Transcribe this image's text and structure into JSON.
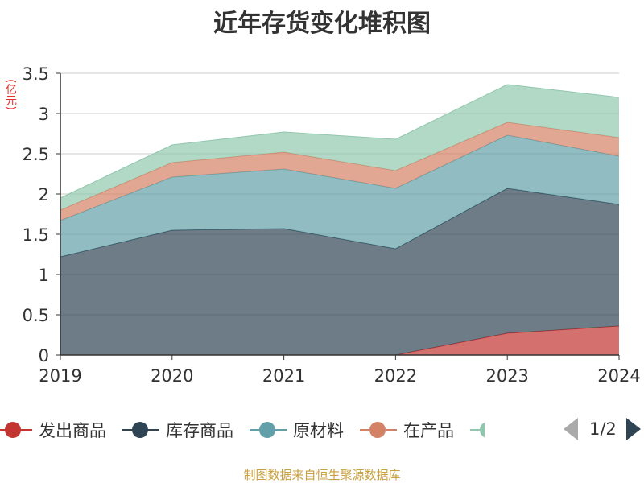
{
  "chart_data": {
    "type": "area",
    "stacked": true,
    "title": "近年存货变化堆积图",
    "y_unit": "(亿元)",
    "categories": [
      "2019",
      "2020",
      "2021",
      "2022",
      "2023",
      "2024"
    ],
    "ylim": [
      0,
      3.5
    ],
    "yticks": [
      "0",
      "0.5",
      "1",
      "1.5",
      "2",
      "2.5",
      "3",
      "3.5"
    ],
    "grid": true,
    "legend_position": "bottom",
    "series": [
      {
        "name": "发出商品",
        "color": "#c23531",
        "values": [
          0,
          0,
          0,
          0,
          0.27,
          0.36
        ]
      },
      {
        "name": "库存商品",
        "color": "#2f4554",
        "values": [
          1.22,
          1.55,
          1.57,
          1.32,
          1.8,
          1.51
        ]
      },
      {
        "name": "原材料",
        "color": "#61a0a8",
        "values": [
          0.45,
          0.66,
          0.74,
          0.75,
          0.66,
          0.6
        ]
      },
      {
        "name": "在产品",
        "color": "#d48265",
        "values": [
          0.13,
          0.18,
          0.21,
          0.22,
          0.16,
          0.23
        ]
      },
      {
        "name": "",
        "color": "#91c7ae",
        "values": [
          0.15,
          0.22,
          0.25,
          0.39,
          0.47,
          0.5
        ]
      }
    ]
  },
  "legend": {
    "items": [
      "发出商品",
      "库存商品",
      "原材料",
      "在产品"
    ],
    "clipped_color": "#91c7ae",
    "page_text": "1/2"
  },
  "source_text": "制图数据来自恒生聚源数据库"
}
